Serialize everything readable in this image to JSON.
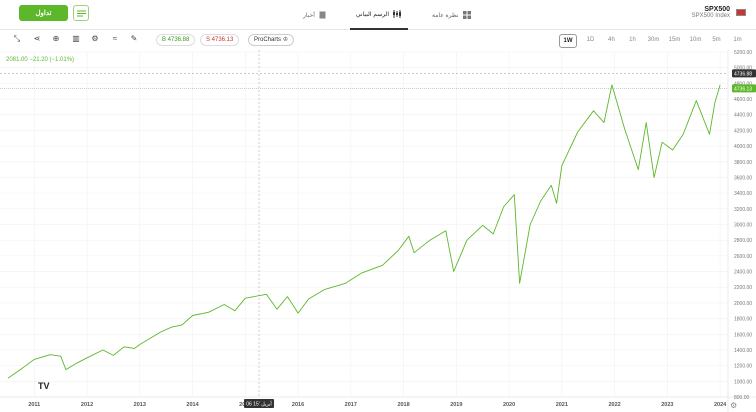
{
  "header": {
    "trade_label": "تداول",
    "tabs": [
      {
        "label": "أخبار",
        "icon": "news-icon"
      },
      {
        "label": "الرسم البياني",
        "icon": "candles-icon",
        "active": true
      },
      {
        "label": "نظرة عامة",
        "icon": "grid-icon"
      }
    ],
    "symbol": "SPX500",
    "symbol_desc": "SPX500 Index"
  },
  "toolbar": {
    "buy_label": "B 4736.88",
    "sell_label": "S 4736.13",
    "prochart_label": "ProCharts",
    "timeframes": [
      "1W",
      "1D",
      "4h",
      "1h",
      "30m",
      "15m",
      "10m",
      "5m",
      "1m"
    ],
    "selected_timeframe": "1W"
  },
  "price_info": "2081.00 −21.20 (−1.01%)",
  "chart_data": {
    "type": "line",
    "series": [
      {
        "color": "#5cb82a",
        "points": [
          [
            2010.5,
            1040
          ],
          [
            2010.8,
            1180
          ],
          [
            2011.0,
            1280
          ],
          [
            2011.3,
            1340
          ],
          [
            2011.5,
            1320
          ],
          [
            2011.6,
            1150
          ],
          [
            2011.8,
            1230
          ],
          [
            2012.0,
            1300
          ],
          [
            2012.3,
            1400
          ],
          [
            2012.5,
            1330
          ],
          [
            2012.7,
            1440
          ],
          [
            2012.9,
            1420
          ],
          [
            2013.0,
            1470
          ],
          [
            2013.4,
            1630
          ],
          [
            2013.6,
            1690
          ],
          [
            2013.8,
            1720
          ],
          [
            2014.0,
            1840
          ],
          [
            2014.3,
            1880
          ],
          [
            2014.6,
            1980
          ],
          [
            2014.8,
            1900
          ],
          [
            2015.0,
            2060
          ],
          [
            2015.4,
            2110
          ],
          [
            2015.6,
            1920
          ],
          [
            2015.8,
            2080
          ],
          [
            2016.0,
            1870
          ],
          [
            2016.2,
            2050
          ],
          [
            2016.5,
            2170
          ],
          [
            2016.9,
            2250
          ],
          [
            2017.2,
            2380
          ],
          [
            2017.6,
            2480
          ],
          [
            2017.9,
            2670
          ],
          [
            2018.1,
            2850
          ],
          [
            2018.2,
            2640
          ],
          [
            2018.5,
            2800
          ],
          [
            2018.8,
            2920
          ],
          [
            2018.95,
            2400
          ],
          [
            2019.2,
            2800
          ],
          [
            2019.5,
            2990
          ],
          [
            2019.7,
            2880
          ],
          [
            2019.9,
            3230
          ],
          [
            2020.1,
            3380
          ],
          [
            2020.2,
            2250
          ],
          [
            2020.4,
            3000
          ],
          [
            2020.6,
            3300
          ],
          [
            2020.8,
            3500
          ],
          [
            2020.9,
            3270
          ],
          [
            2021.0,
            3750
          ],
          [
            2021.3,
            4180
          ],
          [
            2021.6,
            4450
          ],
          [
            2021.8,
            4300
          ],
          [
            2021.95,
            4780
          ],
          [
            2022.2,
            4200
          ],
          [
            2022.45,
            3700
          ],
          [
            2022.6,
            4300
          ],
          [
            2022.75,
            3600
          ],
          [
            2022.9,
            4050
          ],
          [
            2023.1,
            3950
          ],
          [
            2023.3,
            4150
          ],
          [
            2023.55,
            4580
          ],
          [
            2023.8,
            4150
          ],
          [
            2023.9,
            4550
          ],
          [
            2024.0,
            4780
          ]
        ]
      }
    ],
    "x_ticks": [
      "2011",
      "2012",
      "2013",
      "2014",
      "2015",
      "2016",
      "2017",
      "2018",
      "2019",
      "2020",
      "2021",
      "2022",
      "2023",
      "2024"
    ],
    "y_ticks": [
      "800.00",
      "1000.00",
      "1200.00",
      "1400.00",
      "1600.00",
      "1800.00",
      "2000.00",
      "2200.00",
      "2400.00",
      "2600.00",
      "2800.00",
      "3000.00",
      "3200.00",
      "3400.00",
      "3600.00",
      "3800.00",
      "4000.00",
      "4200.00",
      "4400.00",
      "4600.00",
      "4800.00",
      "5000.00",
      "5200.00"
    ],
    "ylim": [
      800,
      5200
    ],
    "xlim": [
      2010.35,
      2024.15
    ],
    "price_labels": [
      "4736.88",
      "4736.13"
    ],
    "crosshair_price": "4736.88",
    "crosshair_date_label": "06 أبريل '15"
  }
}
